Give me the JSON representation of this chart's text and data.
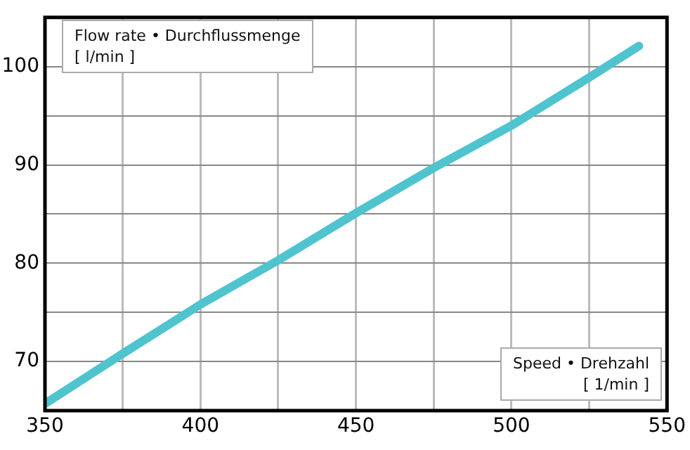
{
  "chart_data": {
    "type": "line",
    "xlabel": "Speed • Drehzahl\n[ 1/min ]",
    "ylabel": "Flow rate • Durchflussmenge\n[ l/min ]",
    "x": [
      350,
      375,
      400,
      425,
      450,
      475,
      500,
      525,
      541
    ],
    "series": [
      {
        "color": "#4fc4cf",
        "values": [
          65.7,
          70.8,
          75.8,
          80.3,
          85.1,
          89.7,
          94,
          98.9,
          102.1
        ]
      }
    ],
    "xlim": [
      350,
      550
    ],
    "xticks": [
      350,
      {
        "value": 375,
        "label": null
      },
      400,
      {
        "value": 425,
        "label": null
      },
      450,
      {
        "value": 475,
        "label": null
      },
      500,
      {
        "value": 525,
        "label": null
      },
      550
    ],
    "ylim": [
      65,
      105
    ],
    "yticks": [
      {
        "value": 65,
        "label": null
      },
      70,
      {
        "value": 75,
        "label": null
      },
      80,
      {
        "value": 85,
        "label": null
      },
      90,
      {
        "value": 95,
        "label": null
      },
      100,
      {
        "value": 105,
        "label": null
      }
    ],
    "grid": true,
    "marker": "none",
    "line_style": "solid",
    "legend": false
  }
}
